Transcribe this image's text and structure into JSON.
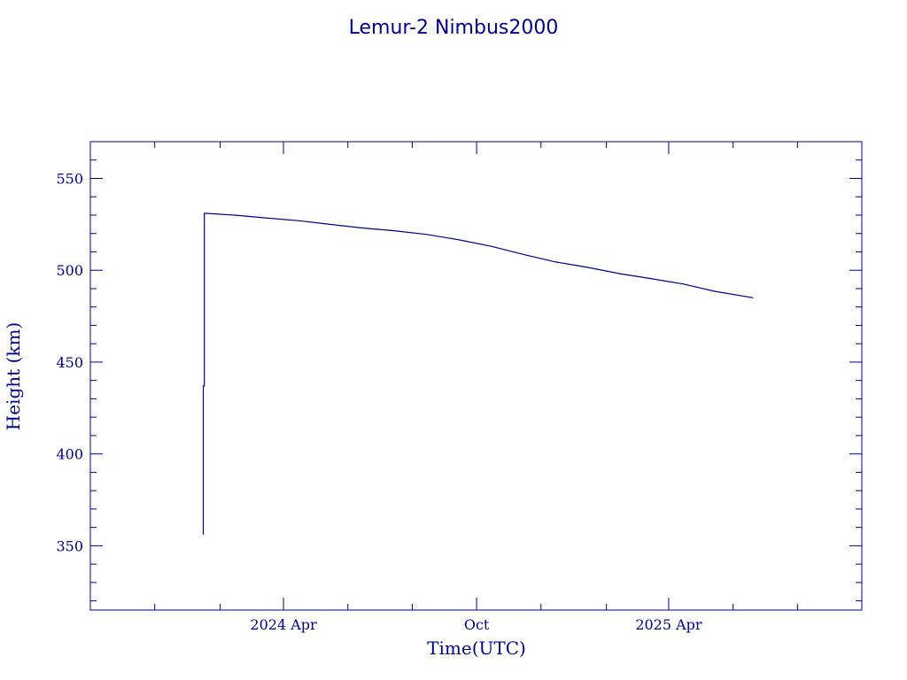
{
  "chart_data": {
    "type": "line",
    "title": "Lemur-2 Nimbus2000",
    "xlabel": "Time(UTC)",
    "ylabel": "Height (km)",
    "x_axis": {
      "unit": "month",
      "range": [
        "2023-10-01",
        "2025-10-01"
      ],
      "major_ticks": [
        {
          "date": "2024-04-01",
          "label": "2024 Apr"
        },
        {
          "date": "2024-10-01",
          "label": "Oct"
        },
        {
          "date": "2025-04-01",
          "label": "2025 Apr"
        }
      ]
    },
    "ylim": [
      315,
      570
    ],
    "y_ticks": [
      350,
      400,
      450,
      500,
      550
    ],
    "grid": false,
    "color": "#00008b",
    "series": [
      {
        "x": [
          "2024-01-16",
          "2024-01-16",
          "2024-01-17",
          "2024-01-17",
          "2024-01-18",
          "2024-02-15",
          "2024-03-15",
          "2024-04-15",
          "2024-05-15",
          "2024-06-15",
          "2024-07-15",
          "2024-08-15",
          "2024-09-15",
          "2024-10-15",
          "2024-11-15",
          "2024-12-15",
          "2025-01-15",
          "2025-02-15",
          "2025-03-15",
          "2025-04-15",
          "2025-05-15",
          "2025-06-20"
        ],
        "values": [
          356,
          437,
          437,
          531,
          531,
          530,
          528.5,
          527,
          525,
          523,
          521.5,
          519.5,
          516.5,
          513,
          508.5,
          504.5,
          501.5,
          498,
          495.5,
          492.5,
          488.5,
          485
        ]
      }
    ]
  }
}
